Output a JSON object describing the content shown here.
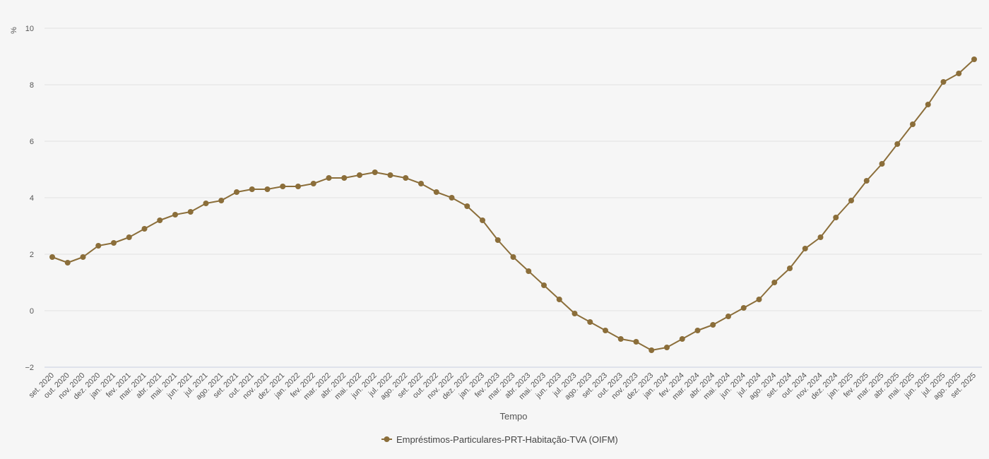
{
  "chart_data": {
    "type": "line",
    "title": "",
    "xlabel": "Tempo",
    "ylabel": "%",
    "ylim": [
      -2,
      10
    ],
    "yticks": [
      -2,
      0,
      2,
      4,
      6,
      8,
      10
    ],
    "ytick_labels": [
      "−2",
      "0",
      "2",
      "4",
      "6",
      "8",
      "10"
    ],
    "grid": true,
    "legend_position": "bottom-center",
    "categories": [
      "set. 2020",
      "out. 2020",
      "nov. 2020",
      "dez. 2020",
      "jan. 2021",
      "fev. 2021",
      "mar. 2021",
      "abr. 2021",
      "mai. 2021",
      "jun. 2021",
      "jul. 2021",
      "ago. 2021",
      "set. 2021",
      "out. 2021",
      "nov. 2021",
      "dez. 2021",
      "jan. 2022",
      "fev. 2022",
      "mar. 2022",
      "abr. 2022",
      "mai. 2022",
      "jun. 2022",
      "jul. 2022",
      "ago. 2022",
      "set. 2022",
      "out. 2022",
      "nov. 2022",
      "dez. 2022",
      "jan. 2023",
      "fev. 2023",
      "mar. 2023",
      "abr. 2023",
      "mai. 2023",
      "jun. 2023",
      "jul. 2023",
      "ago. 2023",
      "set. 2023",
      "out. 2023",
      "nov. 2023",
      "dez. 2023",
      "jan. 2024",
      "fev. 2024",
      "mar. 2024",
      "abr. 2024",
      "mai. 2024",
      "jun. 2024",
      "jul. 2024",
      "ago. 2024",
      "set. 2024",
      "out. 2024",
      "nov. 2024",
      "dez. 2024",
      "jan. 2025",
      "fev. 2025",
      "mar. 2025",
      "abr. 2025",
      "mai. 2025",
      "jun. 2025",
      "jul. 2025",
      "ago. 2025",
      "set. 2025"
    ],
    "series": [
      {
        "name": "Empréstimos-Particulares-PRT-Habitação-TVA (OIFM)",
        "color": "#8b6e3a",
        "values": [
          1.9,
          1.7,
          1.9,
          2.3,
          2.4,
          2.6,
          2.9,
          3.2,
          3.4,
          3.5,
          3.8,
          3.9,
          4.2,
          4.3,
          4.3,
          4.4,
          4.4,
          4.5,
          4.7,
          4.7,
          4.8,
          4.9,
          4.8,
          4.7,
          4.5,
          4.2,
          4.0,
          3.7,
          3.2,
          2.5,
          1.9,
          1.4,
          0.9,
          0.4,
          -0.1,
          -0.4,
          -0.7,
          -1.0,
          -1.1,
          -1.4,
          -1.3,
          -1.0,
          -0.7,
          -0.5,
          -0.2,
          0.1,
          0.4,
          1.0,
          1.5,
          2.2,
          2.6,
          3.3,
          3.9,
          4.6,
          5.2,
          5.9,
          6.6,
          7.3,
          8.1,
          8.4,
          8.9
        ]
      }
    ]
  }
}
